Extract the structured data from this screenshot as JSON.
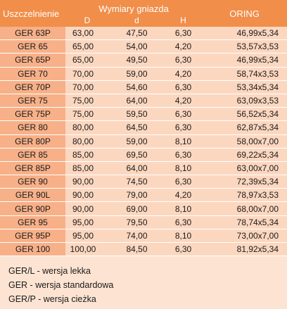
{
  "header": {
    "seal": "Uszczelnienie",
    "socket": "Wymiary gniazda",
    "oring": "ORING",
    "d_upper": "D",
    "d_lower": "d",
    "h": "H"
  },
  "rows": [
    {
      "name": "GER 63P",
      "D": "63,00",
      "d": "47,50",
      "H": "6,30",
      "oring": "46,99x5,34"
    },
    {
      "name": "GER 65",
      "D": "65,00",
      "d": "54,00",
      "H": "4,20",
      "oring": "53,57x3,53"
    },
    {
      "name": "GER 65P",
      "D": "65,00",
      "d": "49,50",
      "H": "6,30",
      "oring": "46,99x5,34"
    },
    {
      "name": "GER 70",
      "D": "70,00",
      "d": "59,00",
      "H": "4,20",
      "oring": "58,74x3,53"
    },
    {
      "name": "GER 70P",
      "D": "70,00",
      "d": "54,60",
      "H": "6,30",
      "oring": "53,34x5,34"
    },
    {
      "name": "GER 75",
      "D": "75,00",
      "d": "64,00",
      "H": "4,20",
      "oring": "63,09x3,53"
    },
    {
      "name": "GER 75P",
      "D": "75,00",
      "d": "59,50",
      "H": "6,30",
      "oring": "56,52x5,34"
    },
    {
      "name": "GER 80",
      "D": "80,00",
      "d": "64,50",
      "H": "6,30",
      "oring": "62,87x5,34"
    },
    {
      "name": "GER 80P",
      "D": "80,00",
      "d": "59,00",
      "H": "8,10",
      "oring": "58,00x7,00"
    },
    {
      "name": "GER 85",
      "D": "85,00",
      "d": "69,50",
      "H": "6,30",
      "oring": "69,22x5,34"
    },
    {
      "name": "GER 85P",
      "D": "85,00",
      "d": "64,00",
      "H": "8,10",
      "oring": "63,00x7,00"
    },
    {
      "name": "GER 90",
      "D": "90,00",
      "d": "74,50",
      "H": "6,30",
      "oring": "72,39x5,34"
    },
    {
      "name": "GER 90L",
      "D": "90,00",
      "d": "79,00",
      "H": "4,20",
      "oring": "78,97x3,53"
    },
    {
      "name": "GER 90P",
      "D": "90,00",
      "d": "69,00",
      "H": "8,10",
      "oring": "68,00x7,00"
    },
    {
      "name": "GER 95",
      "D": "95,00",
      "d": "79,50",
      "H": "6,30",
      "oring": "78,74x5,34"
    },
    {
      "name": "GER 95P",
      "D": "95,00",
      "d": "74,00",
      "H": "8,10",
      "oring": "73,00x7,00"
    },
    {
      "name": "GER 100",
      "D": "100,00",
      "d": "84,50",
      "H": "6,30",
      "oring": "81,92x5,34"
    }
  ],
  "notes": [
    "GER/L - wersja lekka",
    "GER - wersja standardowa",
    "GER/P - wersja cieżka"
  ],
  "colors": {
    "header": "#f08e4a",
    "name_column": "#f7b088",
    "value_cells": "#fcd7c0",
    "background": "#fde4d2"
  }
}
